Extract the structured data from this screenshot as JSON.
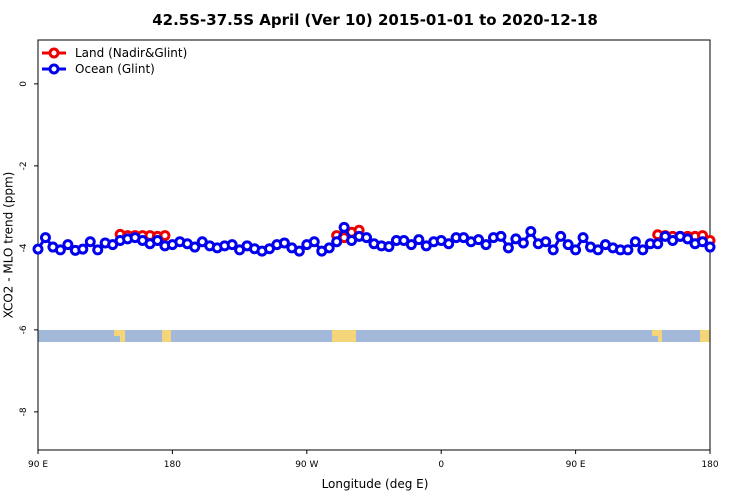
{
  "chart_data": {
    "type": "line",
    "title": "42.5S-37.5S April (Ver 10)   2015-01-01 to 2020-12-18",
    "x_label": "Longitude (deg E)",
    "y_label": "XCO2 - MLO trend (ppm)",
    "xlim": [
      90,
      540
    ],
    "xticks": [
      {
        "value": 90,
        "label": "90 E"
      },
      180,
      {
        "value": 270,
        "label": "90 W"
      },
      {
        "value": 360,
        "label": "0"
      },
      {
        "value": 450,
        "label": "90 E"
      },
      {
        "value": 540,
        "label": "180"
      }
    ],
    "ylim": [
      -8.93,
      1.07
    ],
    "yticks": [
      0,
      -2,
      -4,
      -6,
      -8
    ],
    "legend": "top-left",
    "series": [
      {
        "name": "Land (Nadir&Glint)",
        "color": "#ee0000",
        "x": [
          145,
          150,
          155,
          160,
          165,
          170,
          175,
          180,
          285,
          290,
          295,
          300,
          305,
          500,
          505,
          510,
          515,
          520,
          525,
          530,
          535,
          540
        ],
        "values": [
          -3.67,
          -3.7,
          -3.7,
          -3.7,
          -3.7,
          -3.72,
          -3.7,
          null,
          null,
          -3.7,
          -3.75,
          -3.62,
          -3.57,
          null,
          -3.68,
          -3.7,
          -3.72,
          -3.72,
          -3.72,
          -3.72,
          -3.7,
          -3.82
        ]
      },
      {
        "name": "Ocean (Glint)",
        "color": "#0000ee",
        "x": [
          90,
          95,
          100,
          105,
          110,
          115,
          120,
          125,
          130,
          135,
          140,
          145,
          150,
          155,
          160,
          165,
          170,
          175,
          180,
          185,
          190,
          195,
          200,
          205,
          210,
          215,
          220,
          225,
          230,
          235,
          240,
          245,
          250,
          255,
          260,
          265,
          270,
          275,
          280,
          285,
          290,
          295,
          300,
          305,
          310,
          315,
          320,
          325,
          330,
          335,
          340,
          345,
          350,
          355,
          360,
          365,
          370,
          375,
          380,
          385,
          390,
          395,
          400,
          405,
          410,
          415,
          420,
          425,
          430,
          435,
          440,
          445,
          450,
          455,
          460,
          465,
          470,
          475,
          480,
          485,
          490,
          495,
          500,
          505,
          510,
          515,
          520,
          525,
          530,
          535,
          540
        ],
        "values": [
          -4.03,
          -3.75,
          -3.98,
          -4.05,
          -3.92,
          -4.06,
          -4.03,
          -3.85,
          -4.05,
          -3.88,
          -3.92,
          -3.82,
          -3.78,
          -3.75,
          -3.82,
          -3.9,
          -3.82,
          -3.95,
          -3.92,
          -3.85,
          -3.9,
          -3.98,
          -3.85,
          -3.95,
          -4.0,
          -3.95,
          -3.92,
          -4.05,
          -3.95,
          -4.02,
          -4.08,
          -4.02,
          -3.92,
          -3.88,
          -4.0,
          -4.08,
          -3.92,
          -3.85,
          -4.08,
          -4.0,
          -3.85,
          -3.5,
          -3.82,
          -3.72,
          -3.75,
          -3.9,
          -3.95,
          -3.97,
          -3.82,
          -3.82,
          -3.92,
          -3.8,
          -3.95,
          -3.85,
          -3.82,
          -3.9,
          -3.75,
          -3.75,
          -3.85,
          -3.8,
          -3.92,
          -3.75,
          -3.72,
          -4.0,
          -3.78,
          -3.88,
          -3.6,
          -3.9,
          -3.85,
          -4.05,
          -3.72,
          -3.92,
          -4.05,
          -3.75,
          -3.98,
          -4.05,
          -3.92,
          -4.0,
          -4.05,
          -4.05,
          -3.85,
          -4.05,
          -3.9,
          -3.9,
          -3.72,
          -3.82,
          -3.72,
          -3.78,
          -3.9,
          -3.85,
          -3.98
        ]
      }
    ]
  }
}
